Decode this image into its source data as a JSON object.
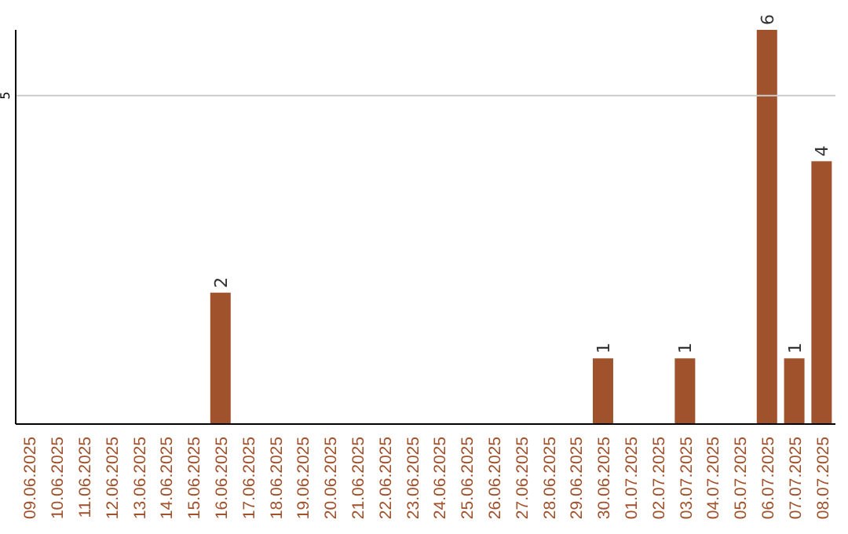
{
  "chart_data": {
    "type": "bar",
    "categories": [
      "09.06.2025",
      "10.06.2025",
      "11.06.2025",
      "12.06.2025",
      "13.06.2025",
      "14.06.2025",
      "15.06.2025",
      "16.06.2025",
      "17.06.2025",
      "18.06.2025",
      "19.06.2025",
      "20.06.2025",
      "21.06.2025",
      "22.06.2025",
      "23.06.2025",
      "24.06.2025",
      "25.06.2025",
      "26.06.2025",
      "27.06.2025",
      "28.06.2025",
      "29.06.2025",
      "30.06.2025",
      "01.07.2025",
      "02.07.2025",
      "03.07.2025",
      "04.07.2025",
      "05.07.2025",
      "06.07.2025",
      "07.07.2025",
      "08.07.2025"
    ],
    "values": [
      0,
      0,
      0,
      0,
      0,
      0,
      0,
      2,
      0,
      0,
      0,
      0,
      0,
      0,
      0,
      0,
      0,
      0,
      0,
      0,
      0,
      1,
      0,
      0,
      1,
      0,
      0,
      6,
      1,
      4
    ],
    "value_labels": [
      null,
      null,
      null,
      null,
      null,
      null,
      null,
      "2",
      null,
      null,
      null,
      null,
      null,
      null,
      null,
      null,
      null,
      null,
      null,
      null,
      null,
      "1",
      null,
      null,
      "1",
      null,
      null,
      "6",
      "1",
      "4"
    ],
    "color": "#a0522d",
    "ylim": [
      0,
      6
    ],
    "yticks": [
      5
    ],
    "grid": "y"
  }
}
